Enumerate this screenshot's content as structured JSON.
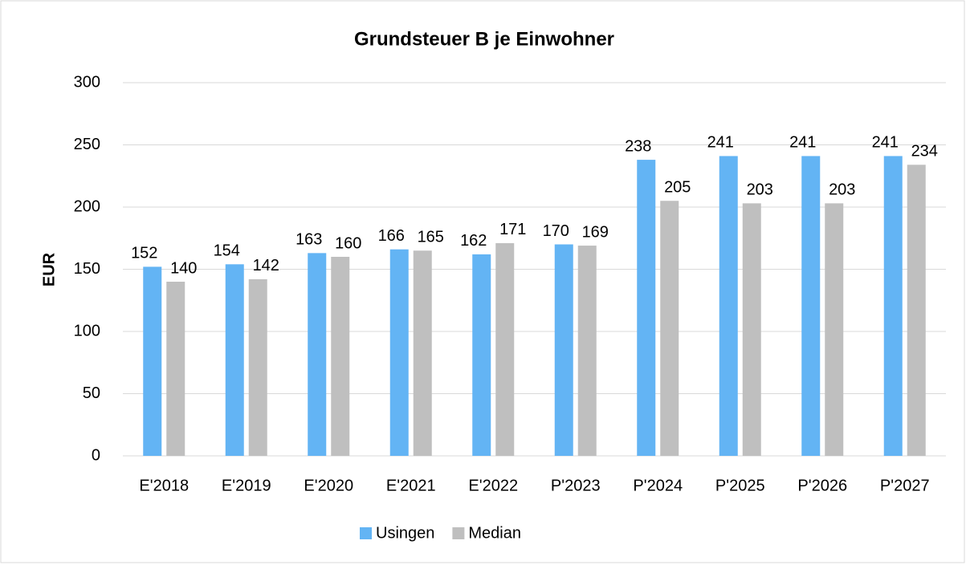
{
  "chart_data": {
    "type": "bar",
    "title": "Grundsteuer B je Einwohner",
    "y_label": "EUR",
    "categories": [
      "E'2018",
      "E'2019",
      "E'2020",
      "E'2021",
      "E'2022",
      "P'2023",
      "P'2024",
      "P'2025",
      "P'2026",
      "P'2027"
    ],
    "series": [
      {
        "name": "Usingen",
        "color": "#63b4f4",
        "values": [
          152,
          154,
          163,
          166,
          162,
          170,
          238,
          241,
          241,
          241
        ]
      },
      {
        "name": "Median",
        "color": "#bfbfbf",
        "values": [
          140,
          142,
          160,
          165,
          171,
          169,
          205,
          203,
          203,
          234
        ]
      }
    ],
    "ylim": [
      0,
      300
    ],
    "yticks": [
      0,
      50,
      100,
      150,
      200,
      250,
      300
    ],
    "grid": true,
    "legend": "bottom"
  }
}
